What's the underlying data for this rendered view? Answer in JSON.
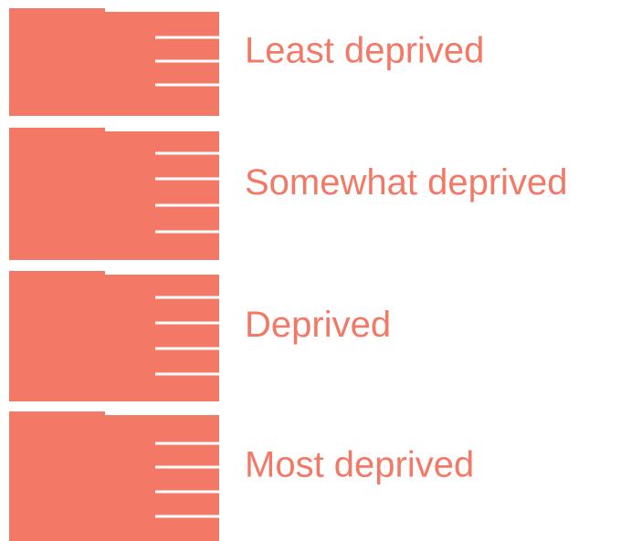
{
  "legend": {
    "items": [
      "Least deprived",
      "Somewhat deprived",
      "Deprived",
      "Most deprived"
    ]
  }
}
